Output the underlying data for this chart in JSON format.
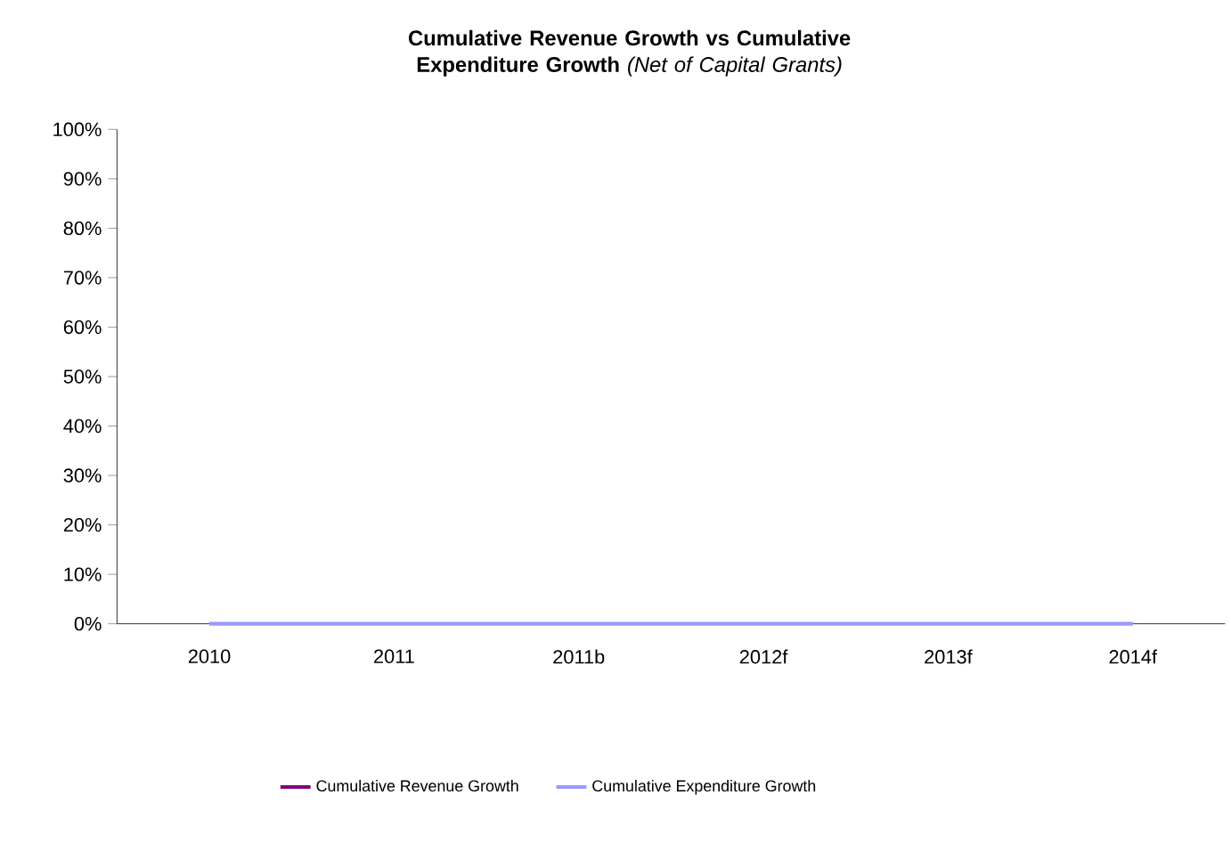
{
  "chart_data": {
    "type": "line",
    "title": "**Cumulative Revenue Growth vs Cumulative Expenditure Growth** *(Net of Capital Grants)*",
    "categories": [
      "2010",
      "2011",
      "2011b",
      "2012f",
      "2013f",
      "2014f"
    ],
    "series": [
      {
        "name": "Cumulative Revenue Growth",
        "color": "#800080",
        "values": [
          null,
          null,
          null,
          null,
          null,
          null
        ]
      },
      {
        "name": "Cumulative Expenditure Growth",
        "color": "#9999ff",
        "values": [
          0,
          0,
          0,
          0,
          0,
          0
        ]
      }
    ],
    "ylim": [
      0,
      100
    ],
    "yticks": [
      {
        "value": 0,
        "label": "0%"
      },
      {
        "value": 10,
        "label": "10%"
      },
      {
        "value": 20,
        "label": "20%"
      },
      {
        "value": 30,
        "label": "30%"
      },
      {
        "value": 40,
        "label": "40%"
      },
      {
        "value": 50,
        "label": "50%"
      },
      {
        "value": 60,
        "label": "60%"
      },
      {
        "value": 70,
        "label": "70%"
      },
      {
        "value": 80,
        "label": "80%"
      },
      {
        "value": 90,
        "label": "90%"
      },
      {
        "value": 100,
        "label": "100%"
      }
    ],
    "legend": "bottom",
    "marker": "none",
    "line_style": "solid"
  }
}
